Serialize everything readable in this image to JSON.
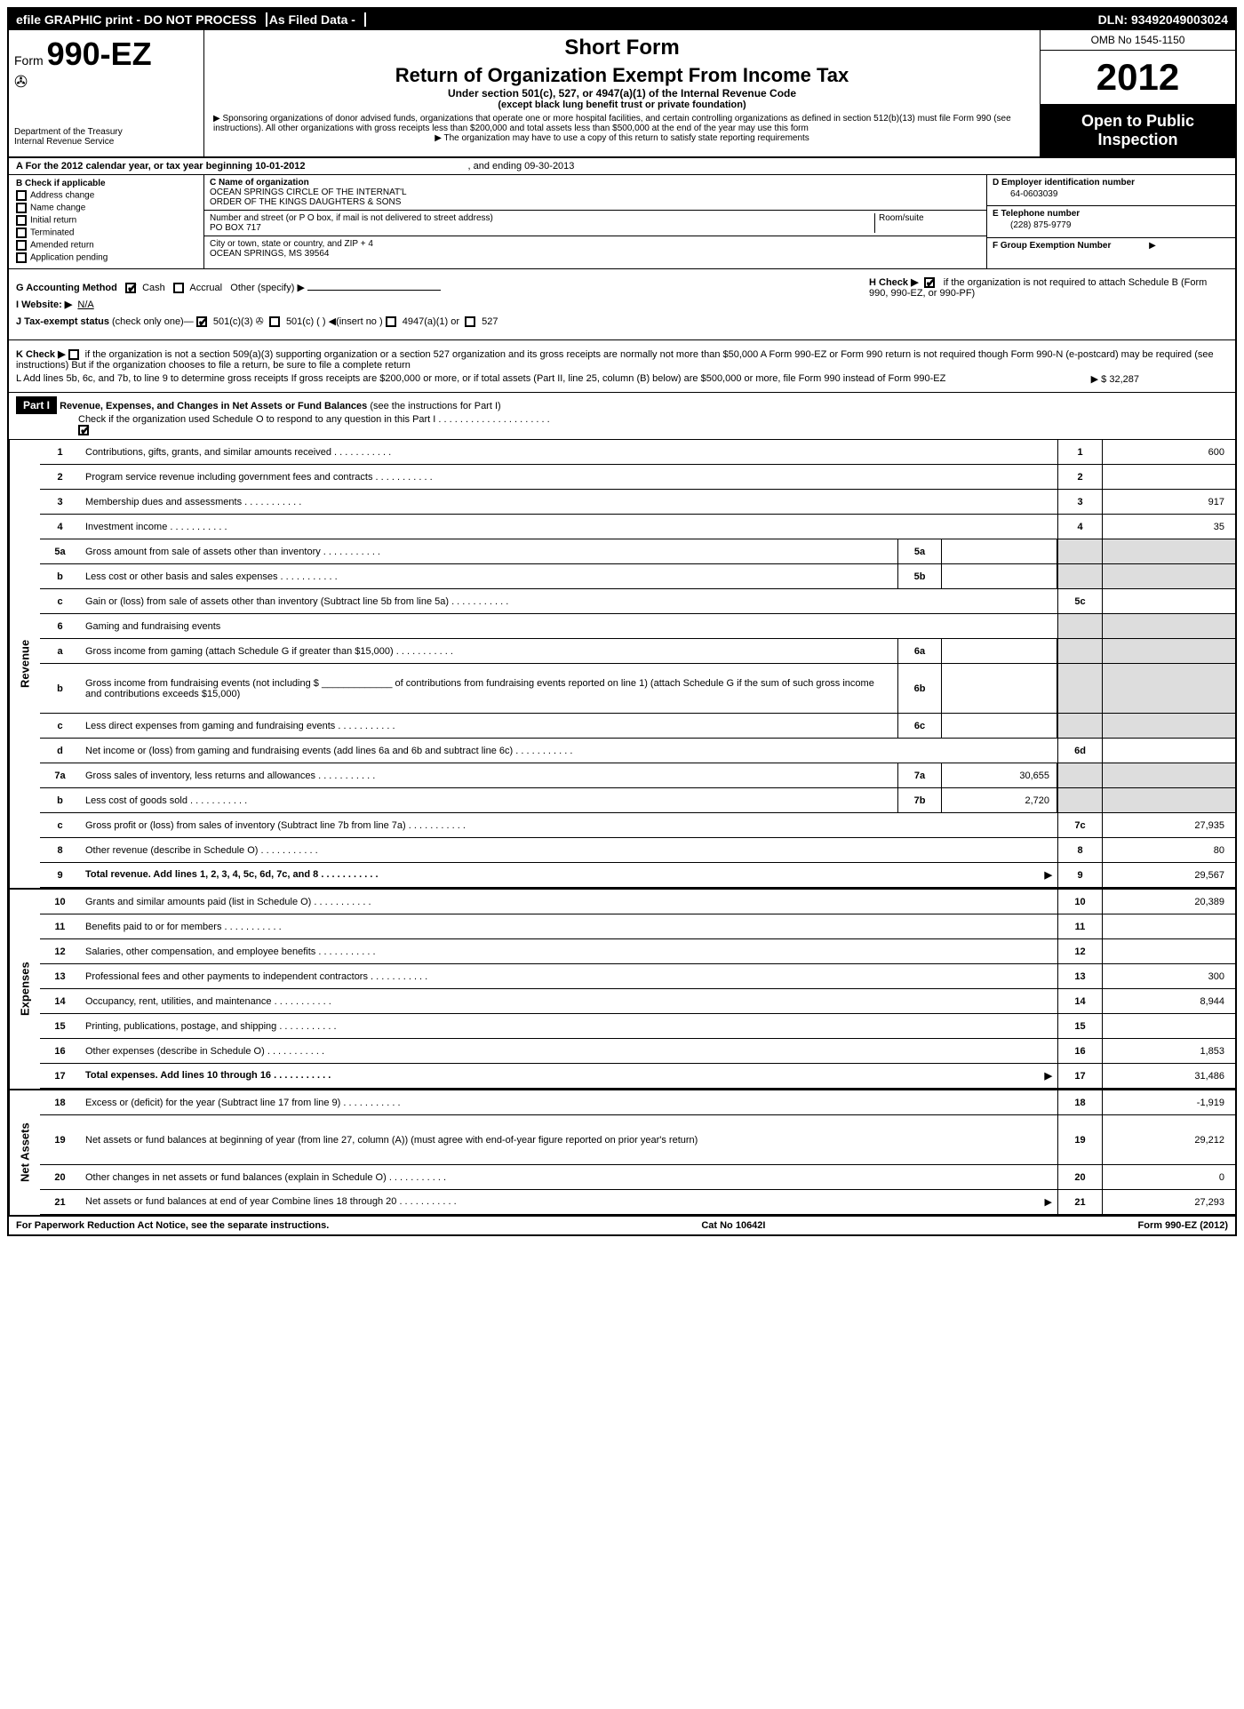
{
  "topbar": {
    "efile": "efile GRAPHIC print - DO NOT PROCESS",
    "asfiled": "As Filed Data -",
    "dln": "DLN: 93492049003024"
  },
  "header": {
    "form_prefix": "Form",
    "form_number": "990-EZ",
    "dept1": "Department of the Treasury",
    "dept2": "Internal Revenue Service",
    "short_form": "Short Form",
    "title": "Return of Organization Exempt From Income Tax",
    "sub1": "Under section 501(c), 527, or 4947(a)(1) of the Internal Revenue Code",
    "sub2": "(except black lung benefit trust or private foundation)",
    "note1": "▶ Sponsoring organizations of donor advised funds, organizations that operate one or more hospital facilities, and certain controlling organizations as defined in section 512(b)(13) must file Form 990 (see instructions). All other organizations with gross receipts less than $200,000 and total assets less than $500,000 at the end of the year may use this form",
    "note2": "▶ The organization may have to use a copy of this return to satisfy state reporting requirements",
    "omb": "OMB No 1545-1150",
    "year": "2012",
    "inspect1": "Open to Public",
    "inspect2": "Inspection"
  },
  "rowA": {
    "label": "A  For the 2012 calendar year, or tax year beginning 10-01-2012",
    "ending": ", and ending 09-30-2013"
  },
  "colB": {
    "header": "B  Check if applicable",
    "items": [
      "Address change",
      "Name change",
      "Initial return",
      "Terminated",
      "Amended return",
      "Application pending"
    ]
  },
  "colC": {
    "name_label": "C Name of organization",
    "name1": "OCEAN SPRINGS CIRCLE OF THE INTERNAT'L",
    "name2": "ORDER OF THE KINGS DAUGHTERS & SONS",
    "addr_label": "Number and street (or P  O  box, if mail is not delivered to street address)",
    "room_label": "Room/suite",
    "addr": "PO BOX 717",
    "city_label": "City or town, state or country, and ZIP + 4",
    "city": "OCEAN SPRINGS, MS  39564"
  },
  "colDEF": {
    "d_label": "D Employer identification number",
    "d_val": "64-0603039",
    "e_label": "E Telephone number",
    "e_val": "(228) 875-9779",
    "f_label": "F Group Exemption Number",
    "f_arrow": "▶"
  },
  "gRow": {
    "g_label": "G Accounting Method",
    "g_cash": "Cash",
    "g_accrual": "Accrual",
    "g_other": "Other (specify) ▶",
    "h_label": "H  Check ▶",
    "h_text": "if the organization is not required to attach Schedule B (Form 990, 990-EZ, or 990-PF)",
    "i_label": "I Website: ▶",
    "i_val": "N/A",
    "j_label": "J Tax-exempt status",
    "j_text": "(check only one)—",
    "j_501c3": "501(c)(3)",
    "j_501c": "501(c) (   ) ◀(insert no )",
    "j_4947": "4947(a)(1) or",
    "j_527": "527"
  },
  "kRow": {
    "k": "K Check ▶",
    "k_text": "if the organization is not a section 509(a)(3) supporting organization or a section 527 organization and its gross receipts are normally not more than $50,000  A Form 990-EZ or Form 990 return is not required though Form 990-N (e-postcard) may be required (see instructions)  But if the organization chooses to file a return, be sure to file a complete return",
    "l": "L Add lines 5b, 6c, and 7b, to line 9 to determine gross receipts  If gross receipts are $200,000 or more, or if total assets (Part II, line 25, column (B) below) are $500,000 or more, file Form 990 instead of Form 990-EZ",
    "l_amt": "▶ $ 32,287"
  },
  "part1": {
    "label": "Part I",
    "title": "Revenue, Expenses, and Changes in Net Assets or Fund Balances",
    "instr": "(see the instructions for Part I)",
    "check": "Check if the organization used Schedule O to respond to any question in this Part I  .   .   .   .   .   .   .   .   .   .   .   .   .   .   .   .   .   .   .   .   ."
  },
  "sections": {
    "revenue": "Revenue",
    "expenses": "Expenses",
    "netassets": "Net Assets"
  },
  "lines": [
    {
      "n": "1",
      "desc": "Contributions, gifts, grants, and similar amounts received",
      "rn": "1",
      "rv": "600"
    },
    {
      "n": "2",
      "desc": "Program service revenue including government fees and contracts",
      "rn": "2",
      "rv": ""
    },
    {
      "n": "3",
      "desc": "Membership dues and assessments",
      "rn": "3",
      "rv": "917"
    },
    {
      "n": "4",
      "desc": "Investment income",
      "rn": "4",
      "rv": "35"
    },
    {
      "n": "5a",
      "desc": "Gross amount from sale of assets other than inventory",
      "sn": "5a",
      "sv": "",
      "shade": true
    },
    {
      "n": "b",
      "desc": "Less  cost or other basis and sales expenses",
      "sn": "5b",
      "sv": "",
      "shade": true
    },
    {
      "n": "c",
      "desc": "Gain or (loss) from sale of assets other than inventory (Subtract line 5b from line 5a)",
      "rn": "5c",
      "rv": ""
    },
    {
      "n": "6",
      "desc": "Gaming and fundraising events",
      "shade": true,
      "noval": true
    },
    {
      "n": "a",
      "desc": "Gross income from gaming (attach Schedule G if greater than $15,000)",
      "sn": "6a",
      "sv": "",
      "shade": true
    },
    {
      "n": "b",
      "desc": "Gross income from fundraising events (not including $ _____________ of contributions from fundraising events reported on line 1) (attach Schedule G if the sum of such gross income and contributions exceeds $15,000)",
      "sn": "6b",
      "sv": "",
      "shade": true,
      "tall": true
    },
    {
      "n": "c",
      "desc": "Less  direct expenses from gaming and fundraising events",
      "sn": "6c",
      "sv": "",
      "shade": true
    },
    {
      "n": "d",
      "desc": "Net income or (loss) from gaming and fundraising events (add lines 6a and 6b and subtract line 6c)",
      "rn": "6d",
      "rv": ""
    },
    {
      "n": "7a",
      "desc": "Gross sales of inventory, less returns and allowances",
      "sn": "7a",
      "sv": "30,655",
      "shade": true
    },
    {
      "n": "b",
      "desc": "Less  cost of goods sold",
      "sn": "7b",
      "sv": "2,720",
      "shade": true
    },
    {
      "n": "c",
      "desc": "Gross profit or (loss) from sales of inventory (Subtract line 7b from line 7a)",
      "rn": "7c",
      "rv": "27,935"
    },
    {
      "n": "8",
      "desc": "Other revenue (describe in Schedule O)",
      "rn": "8",
      "rv": "80"
    },
    {
      "n": "9",
      "desc": "Total revenue. Add lines 1, 2, 3, 4, 5c, 6d, 7c, and 8",
      "rn": "9",
      "rv": "29,567",
      "bold": true,
      "arrow": true
    }
  ],
  "expLines": [
    {
      "n": "10",
      "desc": "Grants and similar amounts paid (list in Schedule O)",
      "rn": "10",
      "rv": "20,389"
    },
    {
      "n": "11",
      "desc": "Benefits paid to or for members",
      "rn": "11",
      "rv": ""
    },
    {
      "n": "12",
      "desc": "Salaries, other compensation, and employee benefits",
      "rn": "12",
      "rv": ""
    },
    {
      "n": "13",
      "desc": "Professional fees and other payments to independent contractors",
      "rn": "13",
      "rv": "300"
    },
    {
      "n": "14",
      "desc": "Occupancy, rent, utilities, and maintenance",
      "rn": "14",
      "rv": "8,944"
    },
    {
      "n": "15",
      "desc": "Printing, publications, postage, and shipping",
      "rn": "15",
      "rv": ""
    },
    {
      "n": "16",
      "desc": "Other expenses (describe in Schedule O)",
      "rn": "16",
      "rv": "1,853"
    },
    {
      "n": "17",
      "desc": "Total expenses. Add lines 10 through 16",
      "rn": "17",
      "rv": "31,486",
      "bold": true,
      "arrow": true
    }
  ],
  "naLines": [
    {
      "n": "18",
      "desc": "Excess or (deficit) for the year (Subtract line 17 from line 9)",
      "rn": "18",
      "rv": "-1,919"
    },
    {
      "n": "19",
      "desc": "Net assets or fund balances at beginning of year (from line 27, column (A)) (must agree with end-of-year figure reported on prior year's return)",
      "rn": "19",
      "rv": "29,212",
      "tall": true
    },
    {
      "n": "20",
      "desc": "Other changes in net assets or fund balances (explain in Schedule O)",
      "rn": "20",
      "rv": "0"
    },
    {
      "n": "21",
      "desc": "Net assets or fund balances at end of year  Combine lines 18 through 20",
      "rn": "21",
      "rv": "27,293",
      "arrow": true
    }
  ],
  "footer": {
    "left": "For Paperwork Reduction Act Notice, see the separate instructions.",
    "center": "Cat No  10642I",
    "right": "Form 990-EZ (2012)"
  }
}
